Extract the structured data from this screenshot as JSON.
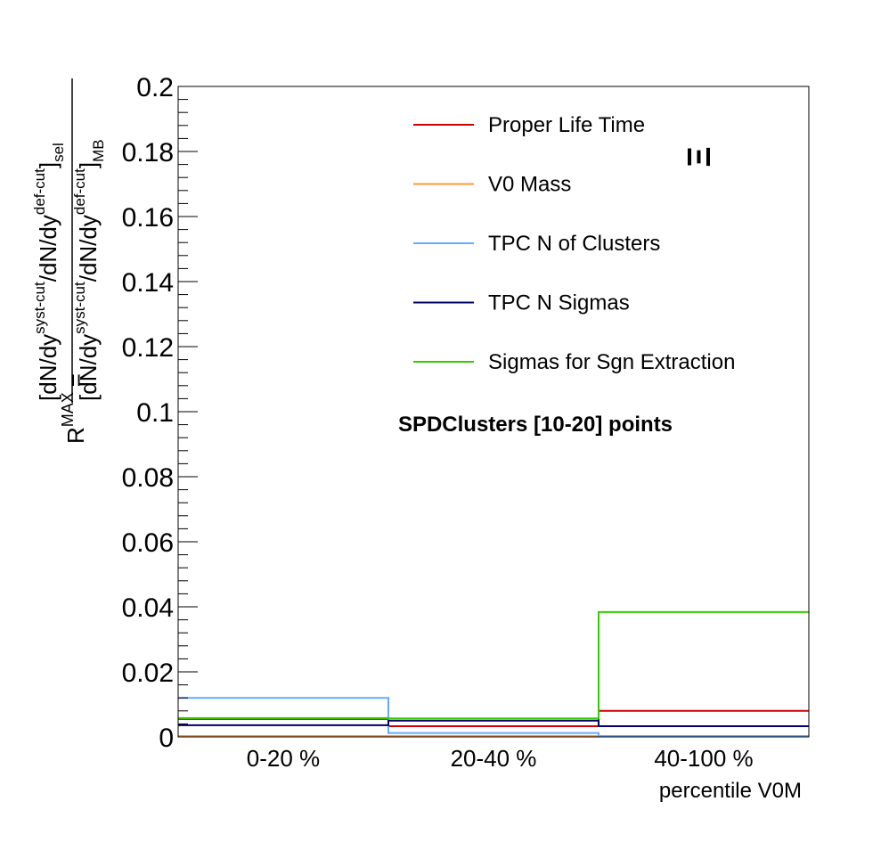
{
  "chart_data": {
    "type": "line",
    "categories": [
      "0-20 %",
      "20-40 %",
      "40-100 %"
    ],
    "xlabel": "percentile V0M",
    "ylabel": {
      "lhs_base": "R",
      "lhs_sup": "MAX",
      "eq": "=",
      "num_bracket_open": "[",
      "num_a": "dN/dy",
      "num_a_sup": "syst-cut",
      "num_b": "/dN/dy",
      "num_b_sup": "def-cut",
      "num_bracket_close": "]",
      "num_sub": "sel",
      "den_bracket_open": "[",
      "den_a": "dN/dy",
      "den_a_sup": "syst-cut",
      "den_b": "/dN/dy",
      "den_b_sup": "def-cut",
      "den_bracket_close": "]",
      "den_sub": "MB"
    },
    "ylim": [
      0,
      0.2
    ],
    "yticks": [
      "0",
      "0.02",
      "0.04",
      "0.06",
      "0.08",
      "0.1",
      "0.12",
      "0.14",
      "0.16",
      "0.18",
      "0.2"
    ],
    "particle_label": "Ξ",
    "annotation": "SPDClusters [10-20] points",
    "legend_position": "top-right",
    "series": [
      {
        "name": "Proper Life Time",
        "color": "#cc0000",
        "values": [
          0.0055,
          0.0033,
          0.008
        ]
      },
      {
        "name": "V0 Mass",
        "color": "#ff9933",
        "values": [
          0.0,
          0.0,
          0.0
        ]
      },
      {
        "name": "TPC N of Clusters",
        "color": "#66aaff",
        "values": [
          0.012,
          0.0012,
          0.0
        ]
      },
      {
        "name": "TPC N Sigmas",
        "color": "#000066",
        "values": [
          0.0036,
          0.005,
          0.0033
        ]
      },
      {
        "name": "Sigmas for Sgn Extraction",
        "color": "#33cc00",
        "values": [
          0.0058,
          0.0057,
          0.0384
        ]
      }
    ]
  }
}
